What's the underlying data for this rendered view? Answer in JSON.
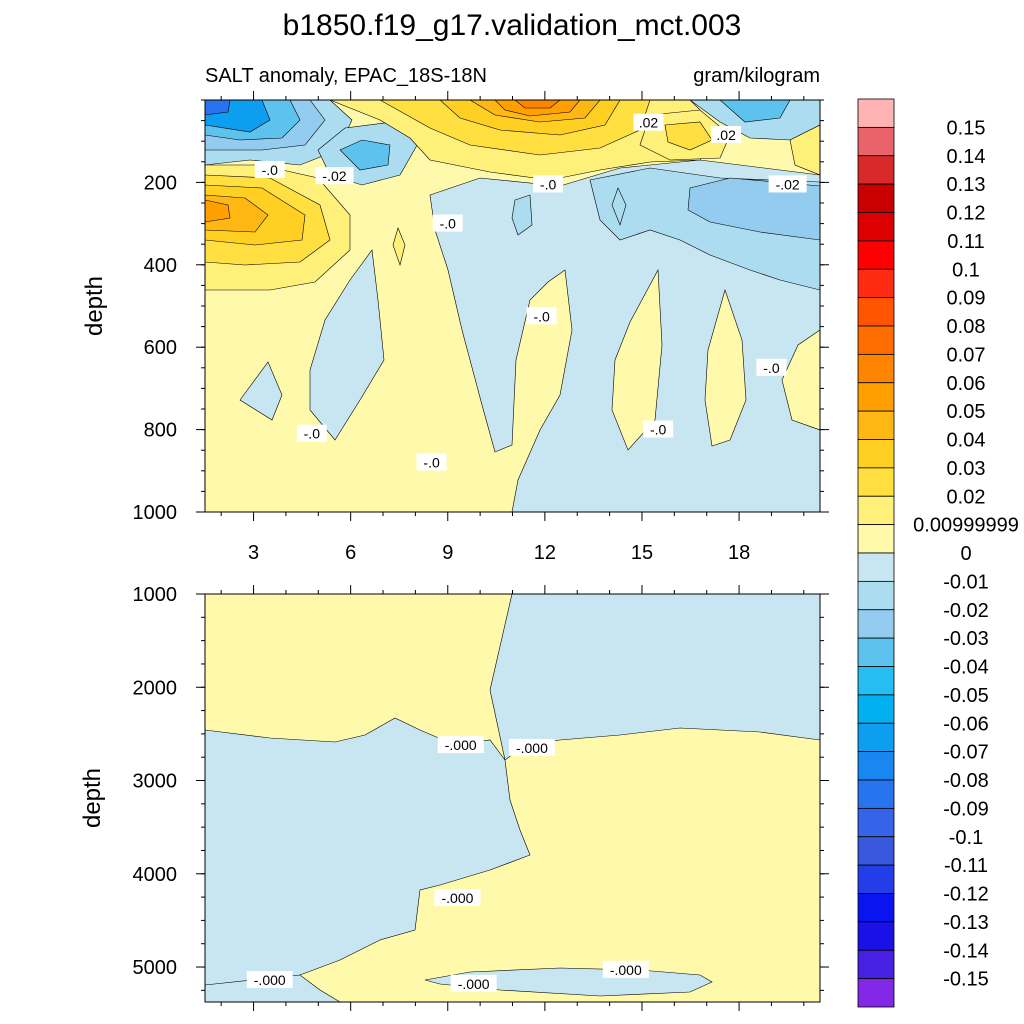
{
  "title": "b1850.f19_g17.validation_mct.003",
  "subtitle_left": "SALT anomaly, EPAC_18S-18N",
  "subtitle_right": "gram/kilogram",
  "chart_data": [
    {
      "type": "contour",
      "panel": "upper",
      "ylabel": "depth",
      "xlabel": "",
      "x_ticks": [
        "3",
        "6",
        "9",
        "12",
        "15",
        "18"
      ],
      "x_tick_values": [
        3,
        6,
        9,
        12,
        15,
        18
      ],
      "y_ticks": [
        "200",
        "400",
        "600",
        "800",
        "1000"
      ],
      "y_tick_values": [
        200,
        400,
        600,
        800,
        1000
      ],
      "xlim": [
        1.5,
        20.5
      ],
      "ylim": [
        0,
        1000
      ],
      "y_inverted": true,
      "contour_labels": [
        {
          "text": "-.0",
          "x": 3.5,
          "y": 170
        },
        {
          "text": "-.02",
          "x": 5.5,
          "y": 185
        },
        {
          "text": ".02",
          "x": 15.2,
          "y": 55
        },
        {
          "text": ".02",
          "x": 17.6,
          "y": 85
        },
        {
          "text": "-.0",
          "x": 12.1,
          "y": 205
        },
        {
          "text": "-.02",
          "x": 19.5,
          "y": 205
        },
        {
          "text": "-.0",
          "x": 9.0,
          "y": 300
        },
        {
          "text": "-.0",
          "x": 11.9,
          "y": 525
        },
        {
          "text": "-.0",
          "x": 19.0,
          "y": 650
        },
        {
          "text": "-.0",
          "x": 15.5,
          "y": 800
        },
        {
          "text": "-.0",
          "x": 4.8,
          "y": 810
        },
        {
          "text": "-.0",
          "x": 8.5,
          "y": 880
        }
      ]
    },
    {
      "type": "contour",
      "panel": "lower",
      "ylabel": "depth",
      "xlabel": "",
      "x_tick_values": [
        3,
        6,
        9,
        12,
        15,
        18
      ],
      "y_ticks": [
        "1000",
        "2000",
        "3000",
        "4000",
        "5000"
      ],
      "y_tick_values": [
        1000,
        2000,
        3000,
        4000,
        5000
      ],
      "xlim": [
        1.5,
        20.5
      ],
      "ylim": [
        1000,
        5375
      ],
      "y_inverted": true,
      "contour_labels": [
        {
          "text": "-.000",
          "x": 9.4,
          "y": 2620
        },
        {
          "text": "-.000",
          "x": 11.6,
          "y": 2650
        },
        {
          "text": "-.000",
          "x": 9.3,
          "y": 4260
        },
        {
          "text": "-.000",
          "x": 3.5,
          "y": 5140
        },
        {
          "text": "-.000",
          "x": 9.8,
          "y": 5180
        },
        {
          "text": "-.000",
          "x": 14.5,
          "y": 5030
        }
      ]
    }
  ],
  "colorbar": {
    "labels": [
      "0.15",
      "0.14",
      "0.13",
      "0.12",
      "0.11",
      "0.1",
      "0.09",
      "0.08",
      "0.07",
      "0.06",
      "0.05",
      "0.04",
      "0.03",
      "0.02",
      "0.00999999",
      "0",
      "-0.01",
      "-0.02",
      "-0.03",
      "-0.04",
      "-0.05",
      "-0.06",
      "-0.07",
      "-0.08",
      "-0.09",
      "-0.1",
      "-0.11",
      "-0.12",
      "-0.13",
      "-0.14",
      "-0.15"
    ],
    "colors": [
      "#ffb3b3",
      "#e8646a",
      "#d92a2a",
      "#c80000",
      "#dd0000",
      "#ff0000",
      "#ff2a12",
      "#ff5500",
      "#ff6c00",
      "#ff8500",
      "#ff9f00",
      "#ffb813",
      "#ffcf22",
      "#ffe040",
      "#fff07a",
      "#fff9ab",
      "#c7e6f2",
      "#acdcf0",
      "#93ccee",
      "#5ec2ef",
      "#26bdf2",
      "#00b0f0",
      "#0e9ef0",
      "#1888f0",
      "#2874ee",
      "#3664e8",
      "#3958dd",
      "#233ee8",
      "#0a14f0",
      "#1a10e8",
      "#4820e4",
      "#8228e6"
    ]
  },
  "colors": {
    "pos_small": "#fff9ab",
    "neg_small": "#c7e6f2",
    "neg_02": "#acdcf0",
    "neg_03": "#93ccee",
    "neg_04": "#5ec2ef",
    "neg_06": "#0e9ef0",
    "neg_08": "#2874ee",
    "neg_12": "#233ee8",
    "pos_02": "#fff07a",
    "pos_03": "#ffe040",
    "pos_04": "#ffcf22",
    "pos_05": "#ffb813",
    "pos_06": "#ff9f00",
    "pos_07": "#ff8500"
  }
}
